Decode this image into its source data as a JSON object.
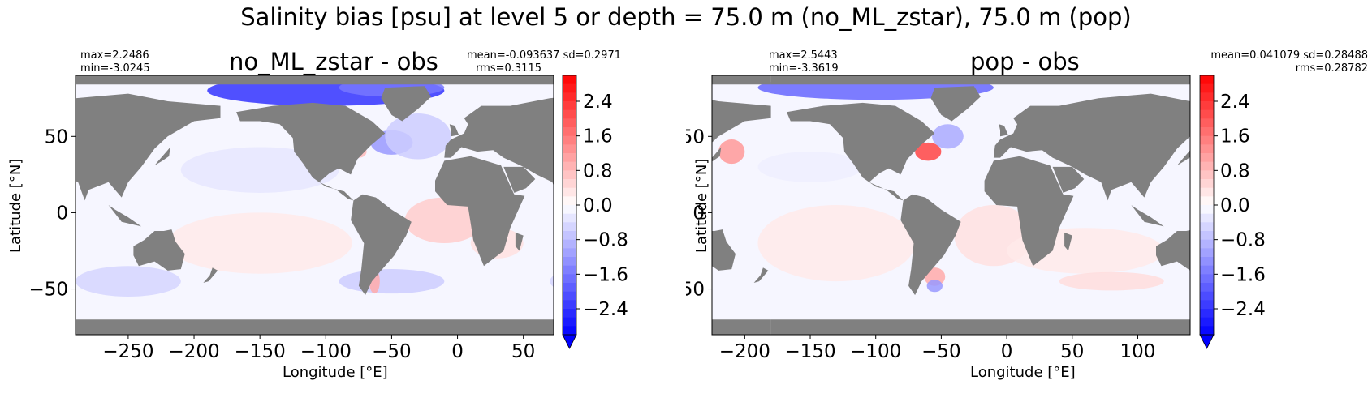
{
  "suptitle": "Salinity bias [psu] at level 5 or depth = 75.0 m (no_ML_zstar), 75.0 m (pop)",
  "colors": {
    "land": "#808080",
    "negative": "#0000ff",
    "positive": "#ff0000",
    "neutral": "#ffffff"
  },
  "chart_data": [
    {
      "type": "heatmap",
      "title": "no_ML_zstar - obs",
      "xlabel": "Longitude [°E]",
      "ylabel": "Latitude [°N]",
      "xlim": [
        -290,
        73
      ],
      "ylim": [
        -80,
        90
      ],
      "x_ticks": [
        "−250",
        "−200",
        "−150",
        "−100",
        "−50",
        "0",
        "50"
      ],
      "x_tick_values": [
        -250,
        -200,
        -150,
        -100,
        -50,
        0,
        50
      ],
      "y_ticks": [
        "50",
        "0",
        "−50"
      ],
      "y_tick_values": [
        50,
        0,
        -50
      ],
      "stats": {
        "max": "max=2.2486",
        "min": "min=-3.0245",
        "mean_sd": "mean=-0.093637 sd=0.2971",
        "rms": "rms=0.3115"
      },
      "colorbar": {
        "range": [
          -3.0,
          3.0
        ],
        "tick_labels": [
          "2.4",
          "1.6",
          "0.8",
          "0.0",
          "−0.8",
          "−1.6",
          "−2.4"
        ],
        "tick_values": [
          2.4,
          1.6,
          0.8,
          0.0,
          -0.8,
          -1.6,
          -2.4
        ],
        "extend": "min"
      }
    },
    {
      "type": "heatmap",
      "title": "pop - obs",
      "xlabel": "Longitude [°E]",
      "ylabel": "Latitude [°N]",
      "xlim": [
        -225,
        140
      ],
      "ylim": [
        -80,
        90
      ],
      "x_ticks": [
        "−200",
        "−150",
        "−100",
        "−50",
        "0",
        "50",
        "100"
      ],
      "x_tick_values": [
        -200,
        -150,
        -100,
        -50,
        0,
        50,
        100
      ],
      "y_ticks": [
        "50",
        "0",
        "−50"
      ],
      "y_tick_values": [
        50,
        0,
        -50
      ],
      "stats": {
        "max": "max=2.5443",
        "min": "min=-3.3619",
        "mean_sd": "mean=0.041079 sd=0.28488",
        "rms": "rms=0.28782"
      },
      "colorbar": {
        "range": [
          -3.0,
          3.0
        ],
        "tick_labels": [
          "2.4",
          "1.6",
          "0.8",
          "0.0",
          "−0.8",
          "−1.6",
          "−2.4"
        ],
        "tick_values": [
          2.4,
          1.6,
          0.8,
          0.0,
          -0.8,
          -1.6,
          -2.4
        ],
        "extend": "min"
      }
    }
  ]
}
